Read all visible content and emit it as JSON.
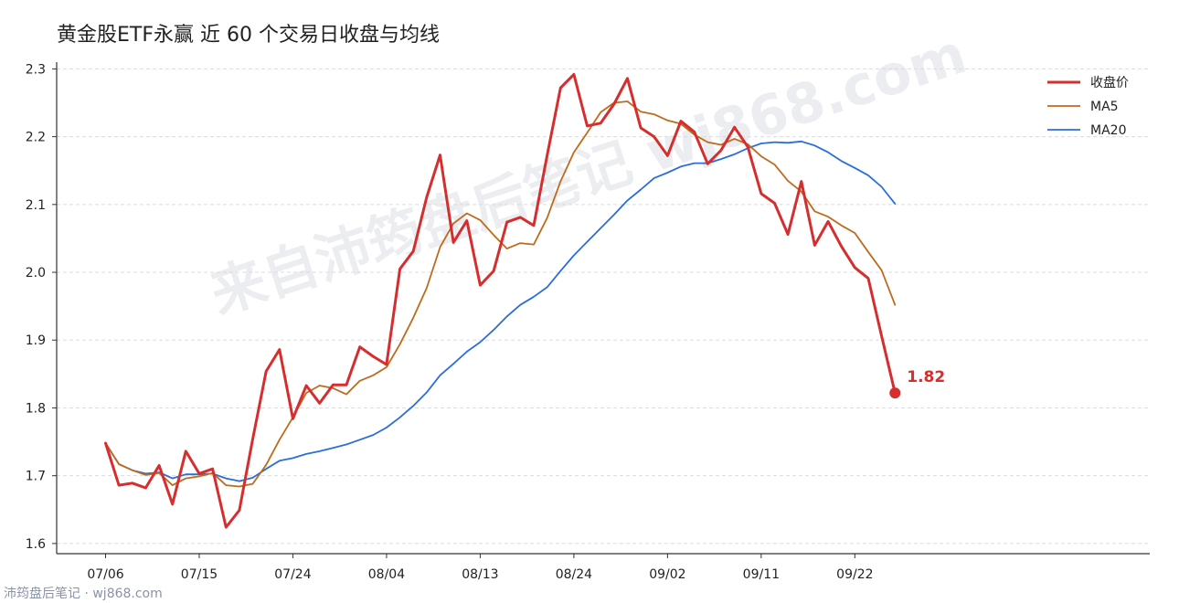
{
  "chart_data": {
    "type": "line",
    "title": "黄金股ETF永赢 近 60 个交易日收盘与均线",
    "watermark": "来自沛筠盘后笔记 wj868.com",
    "footer": "沛筠盘后笔记 · wj868.com",
    "ylim": [
      1.585,
      2.31
    ],
    "yticks": [
      "1.6",
      "1.7",
      "1.8",
      "1.9",
      "2.0",
      "2.1",
      "2.2",
      "2.3"
    ],
    "xticks": [
      {
        "index": 0,
        "label": "07/06"
      },
      {
        "index": 7,
        "label": "07/15"
      },
      {
        "index": 14,
        "label": "07/24"
      },
      {
        "index": 21,
        "label": "08/04"
      },
      {
        "index": 28,
        "label": "08/13"
      },
      {
        "index": 35,
        "label": "08/24"
      },
      {
        "index": 42,
        "label": "09/02"
      },
      {
        "index": 49,
        "label": "09/11"
      },
      {
        "index": 56,
        "label": "09/22"
      }
    ],
    "grid": true,
    "legend_position": "top-right",
    "last_label": "1.82",
    "series": [
      {
        "name": "收盘价",
        "color": "#d62e2e",
        "values": [
          1.748,
          1.686,
          1.689,
          1.682,
          1.715,
          1.658,
          1.736,
          1.703,
          1.71,
          1.624,
          1.649,
          1.754,
          1.854,
          1.886,
          1.784,
          1.833,
          1.807,
          1.834,
          1.834,
          1.89,
          1.876,
          1.864,
          2.005,
          2.031,
          2.111,
          2.173,
          2.044,
          2.076,
          1.981,
          2.002,
          2.074,
          2.081,
          2.069,
          2.172,
          2.272,
          2.292,
          2.216,
          2.22,
          2.248,
          2.286,
          2.213,
          2.2,
          2.172,
          2.223,
          2.207,
          2.16,
          2.18,
          2.214,
          2.185,
          2.116,
          2.102,
          2.056,
          2.134,
          2.04,
          2.075,
          2.038,
          2.007,
          1.991,
          1.906,
          1.822
        ]
      },
      {
        "name": "MA5",
        "color": "#c06a1c",
        "values": [
          1.748,
          1.717,
          1.708,
          1.701,
          1.704,
          1.686,
          1.696,
          1.699,
          1.704,
          1.686,
          1.684,
          1.688,
          1.716,
          1.753,
          1.786,
          1.822,
          1.833,
          1.829,
          1.82,
          1.84,
          1.848,
          1.86,
          1.894,
          1.933,
          1.977,
          2.037,
          2.072,
          2.087,
          2.077,
          2.055,
          2.035,
          2.043,
          2.041,
          2.08,
          2.134,
          2.177,
          2.206,
          2.236,
          2.25,
          2.252,
          2.237,
          2.233,
          2.224,
          2.219,
          2.203,
          2.192,
          2.188,
          2.197,
          2.189,
          2.171,
          2.159,
          2.135,
          2.119,
          2.09,
          2.082,
          2.069,
          2.058,
          2.03,
          2.003,
          1.952
        ]
      },
      {
        "name": "MA20",
        "color": "#2a6ddd",
        "values": [
          1.748,
          1.717,
          1.708,
          1.703,
          1.705,
          1.696,
          1.702,
          1.702,
          1.703,
          1.696,
          1.692,
          1.697,
          1.71,
          1.722,
          1.726,
          1.732,
          1.736,
          1.741,
          1.746,
          1.753,
          1.76,
          1.771,
          1.786,
          1.803,
          1.823,
          1.848,
          1.865,
          1.883,
          1.897,
          1.915,
          1.935,
          1.952,
          1.964,
          1.978,
          2.002,
          2.025,
          2.045,
          2.065,
          2.085,
          2.106,
          2.122,
          2.139,
          2.147,
          2.156,
          2.161,
          2.161,
          2.167,
          2.174,
          2.183,
          2.19,
          2.192,
          2.191,
          2.193,
          2.187,
          2.177,
          2.164,
          2.154,
          2.143,
          2.126,
          2.101
        ]
      }
    ]
  }
}
